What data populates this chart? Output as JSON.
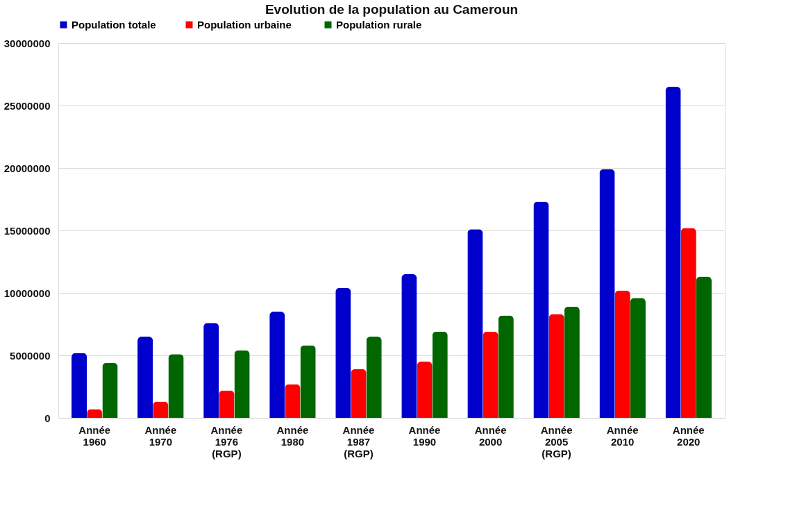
{
  "chart_data": {
    "type": "bar",
    "title": "Evolution de la population au Cameroun",
    "categories": [
      "Année 1960",
      "Année 1970",
      "Année 1976 (RGP)",
      "Année 1980",
      "Année 1987 (RGP)",
      "Année 1990",
      "Année 2000",
      "Année 2005 (RGP)",
      "Année 2010",
      "Année 2020"
    ],
    "series": [
      {
        "name": "Population totale",
        "color": "#0000cc",
        "values": [
          5200000,
          6500000,
          7600000,
          8500000,
          10400000,
          11500000,
          15100000,
          17300000,
          19900000,
          26500000
        ]
      },
      {
        "name": "Population  urbaine",
        "color": "#ff0000",
        "values": [
          700000,
          1300000,
          2200000,
          2700000,
          3900000,
          4500000,
          6900000,
          8300000,
          10200000,
          15200000
        ]
      },
      {
        "name": "Population rurale",
        "color": "#006600",
        "values": [
          4400000,
          5100000,
          5400000,
          5800000,
          6500000,
          6900000,
          8200000,
          8900000,
          9600000,
          11300000
        ]
      }
    ],
    "ylim": [
      0,
      30000000
    ],
    "yticks": [
      0,
      5000000,
      10000000,
      15000000,
      20000000,
      25000000,
      30000000
    ],
    "grid": "y",
    "legend": "top"
  }
}
